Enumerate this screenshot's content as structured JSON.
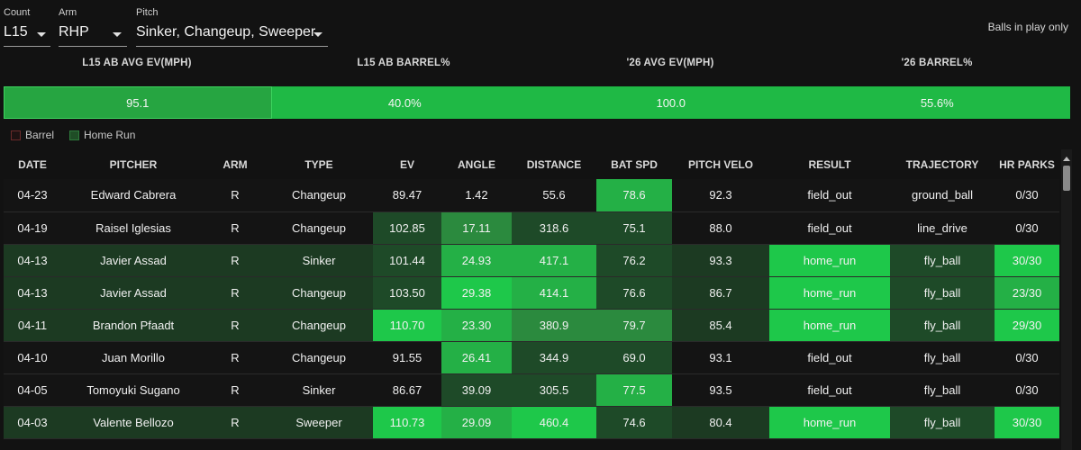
{
  "filters": {
    "count": {
      "label": "Count",
      "value": "L15"
    },
    "arm": {
      "label": "Arm",
      "value": "RHP"
    },
    "pitch": {
      "label": "Pitch",
      "value": "Sinker, Changeup, Sweeper"
    },
    "balls_in_play_label": "Balls in play only"
  },
  "summary": {
    "headers": [
      "L15 AB AVG EV(MPH)",
      "L15 AB BARREL%",
      "'26 AVG EV(MPH)",
      "'26 BARREL%"
    ],
    "values": [
      "95.1",
      "40.0%",
      "100.0",
      "55.6%"
    ]
  },
  "legend": {
    "barrel": "Barrel",
    "home_run": "Home Run"
  },
  "colors": {
    "ev_scale": [
      "#161616",
      "#1e4a28",
      "#2b8a3e",
      "#24b046",
      "#1ec84a"
    ],
    "home_run_row": "#1c3a22",
    "accent": "#1fb945"
  },
  "table": {
    "columns": [
      "DATE",
      "PITCHER",
      "ARM",
      "TYPE",
      "EV",
      "ANGLE",
      "DISTANCE",
      "BAT SPD",
      "PITCH VELO",
      "RESULT",
      "TRAJECTORY",
      "HR PARKS"
    ],
    "rows": [
      {
        "hr": false,
        "cells": [
          "04-23",
          "Edward Cabrera",
          "R",
          "Changeup",
          "89.47",
          "1.42",
          "55.6",
          "78.6",
          "92.3",
          "field_out",
          "ground_ball",
          "0/30"
        ],
        "shade": [
          0,
          0,
          0,
          0,
          0,
          0,
          0,
          3,
          0,
          0,
          0,
          0
        ]
      },
      {
        "hr": false,
        "cells": [
          "04-19",
          "Raisel Iglesias",
          "R",
          "Changeup",
          "102.85",
          "17.11",
          "318.6",
          "75.1",
          "88.0",
          "field_out",
          "line_drive",
          "0/30"
        ],
        "shade": [
          0,
          0,
          0,
          0,
          1,
          2,
          1,
          1,
          0,
          0,
          0,
          0
        ]
      },
      {
        "hr": true,
        "cells": [
          "04-13",
          "Javier Assad",
          "R",
          "Sinker",
          "101.44",
          "24.93",
          "417.1",
          "76.2",
          "93.3",
          "home_run",
          "fly_ball",
          "30/30"
        ],
        "shade": [
          0,
          0,
          0,
          0,
          1,
          3,
          3,
          1,
          0,
          4,
          1,
          4
        ]
      },
      {
        "hr": true,
        "cells": [
          "04-13",
          "Javier Assad",
          "R",
          "Changeup",
          "103.50",
          "29.38",
          "414.1",
          "76.6",
          "86.7",
          "home_run",
          "fly_ball",
          "23/30"
        ],
        "shade": [
          0,
          0,
          0,
          0,
          1,
          4,
          3,
          1,
          0,
          4,
          1,
          3
        ]
      },
      {
        "hr": true,
        "cells": [
          "04-11",
          "Brandon Pfaadt",
          "R",
          "Changeup",
          "110.70",
          "23.30",
          "380.9",
          "79.7",
          "85.4",
          "home_run",
          "fly_ball",
          "29/30"
        ],
        "shade": [
          0,
          0,
          0,
          0,
          4,
          3,
          2,
          2,
          0,
          4,
          1,
          4
        ]
      },
      {
        "hr": false,
        "cells": [
          "04-10",
          "Juan Morillo",
          "R",
          "Changeup",
          "91.55",
          "26.41",
          "344.9",
          "69.0",
          "93.1",
          "field_out",
          "fly_ball",
          "0/30"
        ],
        "shade": [
          0,
          0,
          0,
          0,
          0,
          3,
          1,
          1,
          0,
          0,
          0,
          0
        ]
      },
      {
        "hr": false,
        "cells": [
          "04-05",
          "Tomoyuki Sugano",
          "R",
          "Sinker",
          "86.67",
          "39.09",
          "305.5",
          "77.5",
          "93.5",
          "field_out",
          "fly_ball",
          "0/30"
        ],
        "shade": [
          0,
          0,
          0,
          0,
          0,
          1,
          1,
          3,
          0,
          0,
          0,
          0
        ]
      },
      {
        "hr": true,
        "cells": [
          "04-03",
          "Valente Bellozo",
          "R",
          "Sweeper",
          "110.73",
          "29.09",
          "460.4",
          "74.6",
          "80.4",
          "home_run",
          "fly_ball",
          "30/30"
        ],
        "shade": [
          0,
          0,
          0,
          0,
          4,
          3,
          4,
          1,
          0,
          4,
          1,
          4
        ]
      }
    ]
  }
}
